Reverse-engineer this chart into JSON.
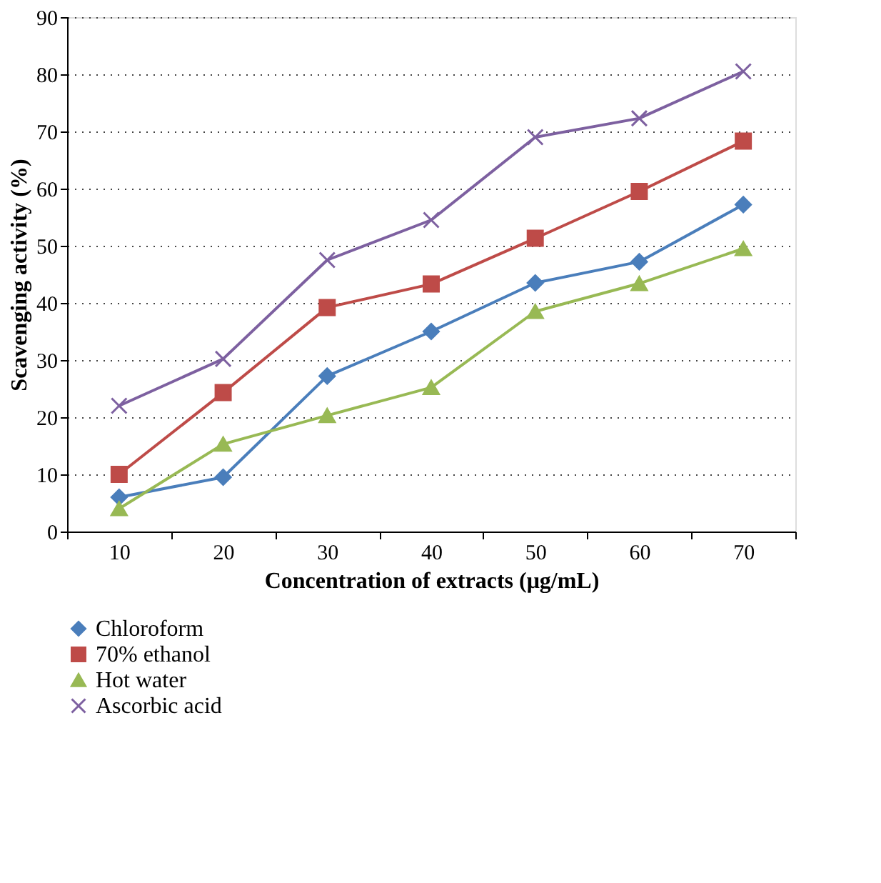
{
  "chart_data": {
    "type": "line",
    "xlabel": "Concentration of extracts (μg/mL)",
    "ylabel": "Scavenging activity (%)",
    "categories": [
      "10",
      "20",
      "30",
      "40",
      "50",
      "60",
      "70"
    ],
    "ylim": [
      0,
      90
    ],
    "yticks": [
      0,
      10,
      20,
      30,
      40,
      50,
      60,
      70,
      80,
      90
    ],
    "grid": "y",
    "legend": "bottom",
    "series": [
      {
        "name": "Chloroform",
        "color": "#4a7ebb",
        "marker": "diamond",
        "values": [
          6,
          9.5,
          27.2,
          35,
          43.5,
          47.2,
          57.2
        ]
      },
      {
        "name": "70% ethanol",
        "color": "#be4b48",
        "marker": "square",
        "values": [
          10,
          24.3,
          39.2,
          43.3,
          51.3,
          59.5,
          68.3
        ]
      },
      {
        "name": "Hot water",
        "color": "#98b954",
        "marker": "triangle",
        "values": [
          4,
          15.3,
          20.3,
          25.2,
          38.5,
          43.4,
          49.5
        ]
      },
      {
        "name": "Ascorbic acid",
        "color": "#7d60a0",
        "marker": "cross",
        "values": [
          22,
          30.2,
          47.5,
          54.5,
          69,
          72.3,
          80.5
        ]
      }
    ]
  }
}
